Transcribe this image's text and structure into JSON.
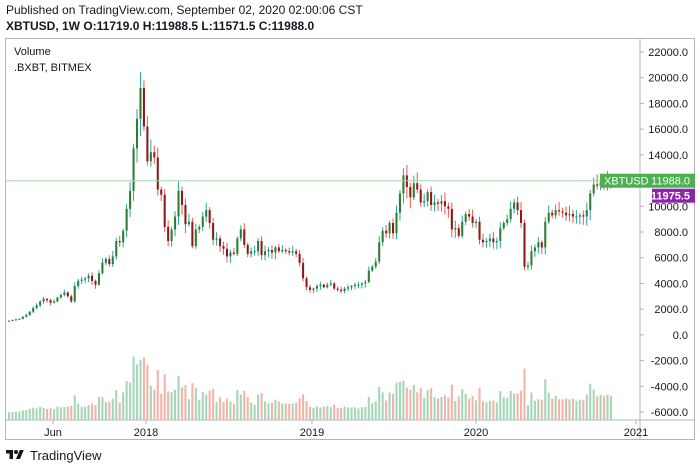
{
  "header": {
    "published": "Published on TradingView.com, September 02, 2020 02:00:06 CST",
    "ohlc": "XBTUSD, 1W  O:11719.0  H:11988.5  L:11571.5  C:11988.0"
  },
  "legend": {
    "volume_label": "Volume",
    "symbol_label": ".BXBT, BITMEX"
  },
  "footer": {
    "brand": "TradingView"
  },
  "colors": {
    "up": "#26a69a",
    "down": "#ef5350",
    "up_body": "#2e7d32",
    "down_body": "#8b1a1a",
    "vol_up": "#a5d6b7",
    "vol_down": "#f4b3a8",
    "last_price_line": "#a5d6a7",
    "last_price_tag": "#4caf50",
    "index_tag": "#8e24aa"
  },
  "chart_data": {
    "type": "candlestick",
    "symbol": "XBTUSD",
    "interval": "1W",
    "price_axis": {
      "min": -6000,
      "max": 22000,
      "ticks": [
        22000,
        20000,
        18000,
        16000,
        14000,
        12000,
        10000,
        8000,
        6000,
        4000,
        2000,
        0,
        -2000,
        -4000,
        -6000
      ],
      "tick_labels": [
        "22000.0",
        "20000.0",
        "18000.0",
        "16000.0",
        "14000.0",
        "12000.0",
        "10000.0",
        "8000.0",
        "6000.0",
        "4000.0",
        "2000.0",
        "0.0",
        "-2000.0",
        "-4000.0",
        "-6000.0"
      ]
    },
    "x_axis": {
      "tick_labels": [
        "Jun",
        "2018",
        "2019",
        "2020",
        "2021"
      ]
    },
    "last_price": {
      "label": "XBTUSD",
      "value": 11988.0,
      "value_label": "11988.0"
    },
    "index_price": {
      "value": 11975.5,
      "value_label": "11975.5"
    },
    "close_series": [
      1100,
      1150,
      1200,
      1250,
      1400,
      1550,
      1800,
      2100,
      2300,
      2600,
      2800,
      2700,
      2500,
      2600,
      2900,
      3100,
      3300,
      3000,
      2600,
      3800,
      4200,
      4300,
      4400,
      4600,
      4200,
      3900,
      4800,
      5600,
      5900,
      5500,
      6100,
      7300,
      7200,
      8100,
      9800,
      11200,
      14500,
      16800,
      19200,
      16200,
      13500,
      14200,
      13800,
      11300,
      10900,
      8400,
      7300,
      8200,
      9200,
      11200,
      10100,
      8600,
      8800,
      6900,
      8200,
      8400,
      9200,
      9700,
      8700,
      7400,
      7500,
      6900,
      6700,
      6100,
      6400,
      6300,
      7500,
      8200,
      7000,
      6300,
      6500,
      6500,
      7300,
      6200,
      6500,
      6600,
      6400,
      6800,
      6500,
      6600,
      6500,
      6400,
      6500,
      6300,
      5600,
      4400,
      3700,
      3500,
      3600,
      3800,
      3900,
      3700,
      3900,
      4000,
      3600,
      3500,
      3400,
      3600,
      3700,
      3800,
      3900,
      3900,
      4000,
      4100,
      5000,
      5300,
      5700,
      7200,
      8100,
      7900,
      8700,
      7900,
      9500,
      11000,
      12400,
      11500,
      10700,
      11800,
      11300,
      10300,
      10400,
      11100,
      10100,
      10300,
      10200,
      10400,
      10000,
      9800,
      8200,
      8300,
      7700,
      8800,
      9400,
      9200,
      8700,
      8800,
      7400,
      7200,
      7300,
      7500,
      7200,
      7300,
      8300,
      8700,
      9000,
      9800,
      10300,
      9700,
      8700,
      5300,
      5400,
      6500,
      6800,
      7200,
      6800,
      8800,
      9500,
      9300,
      9700,
      9600,
      9500,
      9300,
      9400,
      9200,
      9200,
      9300,
      9200,
      9700,
      11000,
      11700,
      11600,
      11800,
      11700,
      11900,
      11988
    ]
  }
}
